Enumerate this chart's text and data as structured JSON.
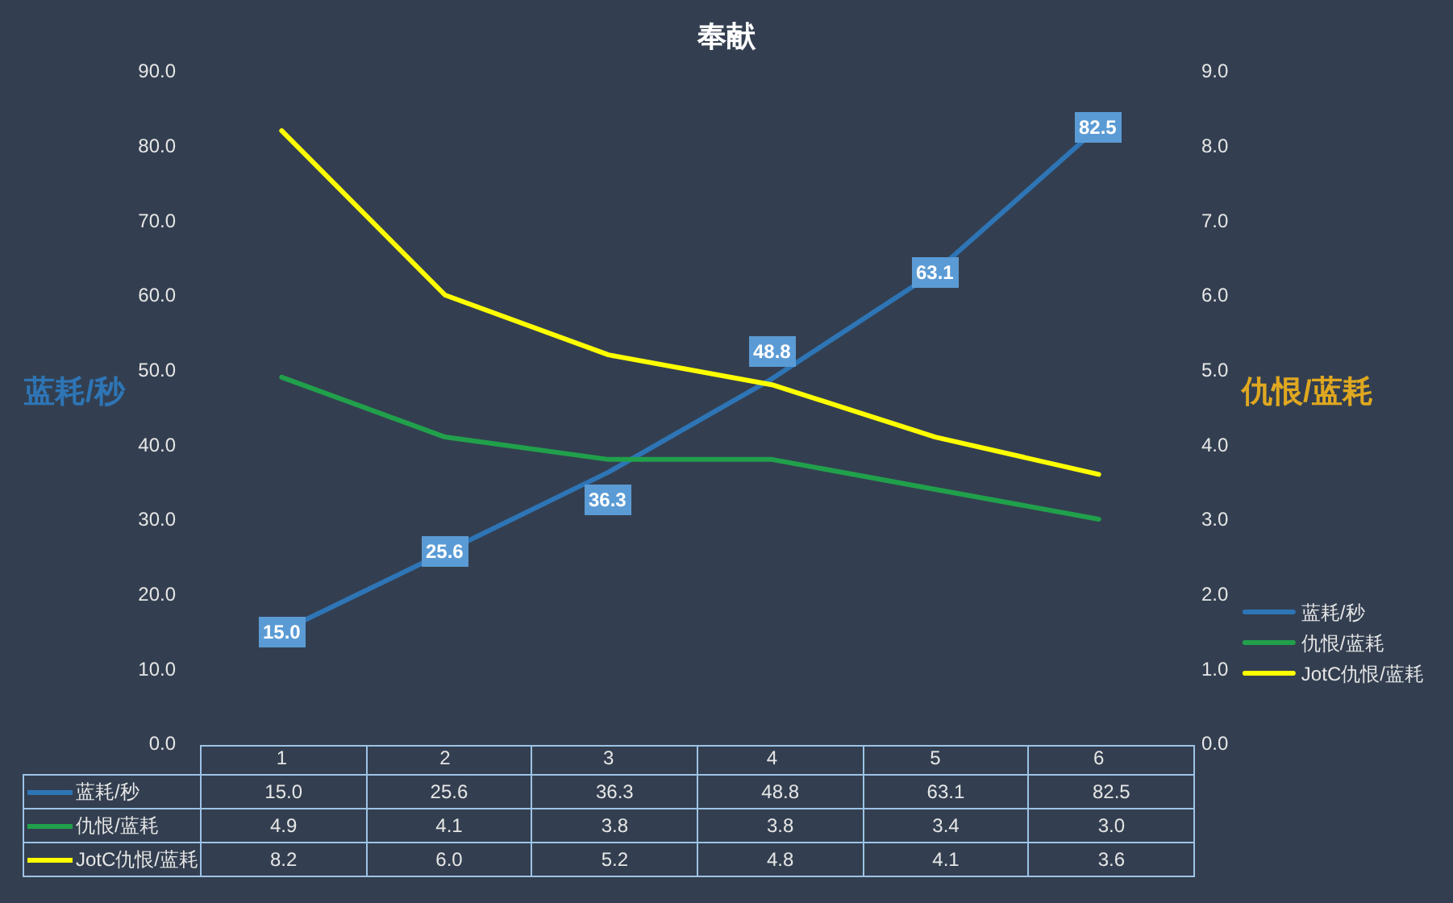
{
  "chart_data": {
    "type": "line",
    "title": "奉献",
    "ylabel": "蓝耗/秒",
    "y2label": "仇恨/蓝耗",
    "categories": [
      "1",
      "2",
      "3",
      "4",
      "5",
      "6"
    ],
    "series": [
      {
        "name": "蓝耗/秒",
        "color": "#2e75b6",
        "values": [
          15.0,
          25.6,
          36.3,
          48.8,
          63.1,
          82.5
        ],
        "value_labels": [
          "15.0",
          "25.6",
          "36.3",
          "48.8",
          "63.1",
          "82.5"
        ],
        "data_labels": true
      },
      {
        "name": "仇恨/蓝耗",
        "color": "#21a04b",
        "axis": "y2",
        "values": [
          4.9,
          4.1,
          3.8,
          3.8,
          3.4,
          3.0
        ],
        "value_labels": [
          "4.9",
          "4.1",
          "3.8",
          "3.8",
          "3.4",
          "3.0"
        ]
      },
      {
        "name": "JotC仇恨/蓝耗",
        "color": "#ffff00",
        "axis": "y2",
        "values": [
          8.2,
          6.0,
          5.2,
          4.8,
          4.1,
          3.6
        ],
        "value_labels": [
          "8.2",
          "6.0",
          "5.2",
          "4.8",
          "4.1",
          "3.6"
        ]
      }
    ],
    "ylim": [
      0,
      90
    ],
    "yticks": [
      {
        "value": 0,
        "label": "0.0"
      },
      {
        "value": 10,
        "label": "10.0"
      },
      {
        "value": 20,
        "label": "20.0"
      },
      {
        "value": 30,
        "label": "30.0"
      },
      {
        "value": 40,
        "label": "40.0"
      },
      {
        "value": 50,
        "label": "50.0"
      },
      {
        "value": 60,
        "label": "60.0"
      },
      {
        "value": 70,
        "label": "70.0"
      },
      {
        "value": 80,
        "label": "80.0"
      },
      {
        "value": 90,
        "label": "90.0"
      }
    ],
    "y2lim": [
      0,
      9
    ],
    "y2ticks": [
      {
        "value": 0,
        "label": "0.0"
      },
      {
        "value": 1,
        "label": "1.0"
      },
      {
        "value": 2,
        "label": "2.0"
      },
      {
        "value": 3,
        "label": "3.0"
      },
      {
        "value": 4,
        "label": "4.0"
      },
      {
        "value": 5,
        "label": "5.0"
      },
      {
        "value": 6,
        "label": "6.0"
      },
      {
        "value": 7,
        "label": "7.0"
      },
      {
        "value": 8,
        "label": "8.0"
      },
      {
        "value": 9,
        "label": "9.0"
      }
    ],
    "grid": false,
    "legend": "right",
    "line_style": "solid",
    "data_labels": true
  }
}
